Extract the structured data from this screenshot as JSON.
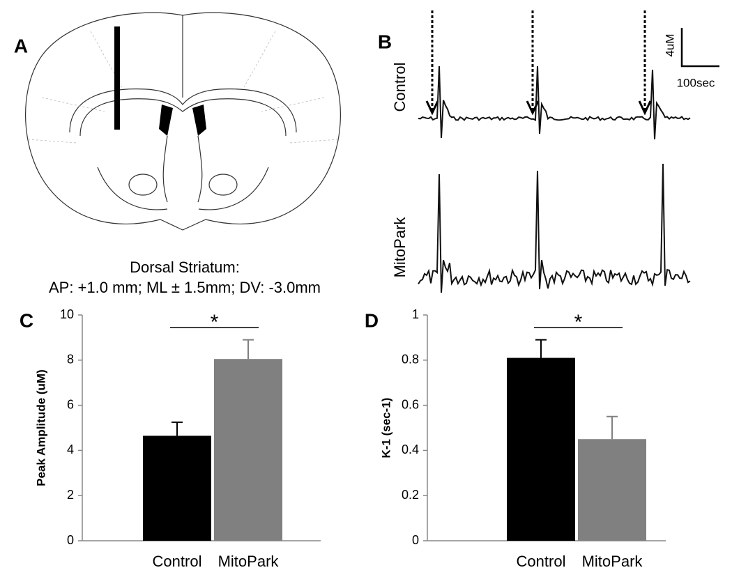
{
  "panels": {
    "a": {
      "label": "A",
      "caption": [
        "Dorsal Striatum:",
        "AP: +1.0 mm; ML ± 1.5mm; DV: -3.0mm"
      ]
    },
    "b": {
      "label": "B",
      "traces": [
        "Control",
        "MitoPark"
      ],
      "scale_y": "4uM",
      "scale_x": "100sec"
    }
  },
  "chart_data": [
    {
      "type": "bar",
      "label": "C",
      "ylabel": "Peak Amplitude (uM)",
      "categories": [
        "Control",
        "MitoPark"
      ],
      "values": [
        4.65,
        8.05
      ],
      "errors": [
        0.6,
        0.85
      ],
      "colors": [
        "#000000",
        "#808080"
      ],
      "ylim": [
        0,
        10
      ],
      "yticks": [
        0,
        2,
        4,
        6,
        8,
        10
      ],
      "annotation": "*"
    },
    {
      "type": "bar",
      "label": "D",
      "ylabel": "K-1 (sec-1)",
      "categories": [
        "Control",
        "MitoPark"
      ],
      "values": [
        0.81,
        0.45
      ],
      "errors": [
        0.08,
        0.1
      ],
      "colors": [
        "#000000",
        "#808080"
      ],
      "ylim": [
        0,
        1
      ],
      "yticks": [
        0,
        0.2,
        0.4,
        0.6,
        0.8,
        1
      ],
      "annotation": "*"
    }
  ]
}
